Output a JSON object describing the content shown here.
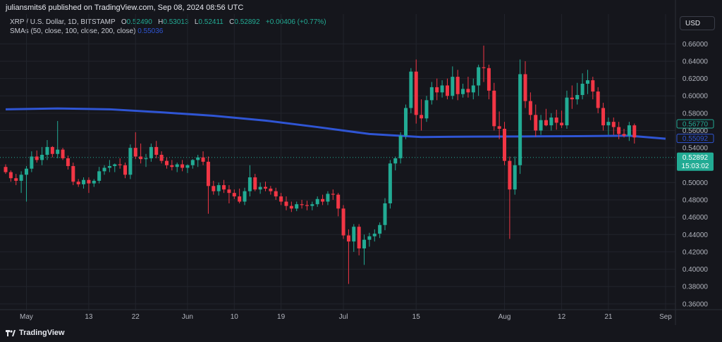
{
  "header": {
    "published": "juliansmits6 published on TradingView.com, Sep 08, 2024 08:56 UTC",
    "symbol": "XRP / U.S. Dollar, 1D, BITSTAMP",
    "open_label": "O",
    "open": "0.52490",
    "high_label": "H",
    "high": "0.53013",
    "low_label": "L",
    "low": "0.52411",
    "close_label": "C",
    "close": "0.52892",
    "change": "+0.00406 (+0.77%)",
    "sma_label": "SMAs (50, close, 100, close, 200, close)",
    "sma_value": "0.55036",
    "currency": "USD"
  },
  "footer": {
    "brand": "TradingView"
  },
  "colors": {
    "up": "#22ab94",
    "down": "#f23645",
    "sma": "#2f55d4",
    "background": "#15161c",
    "grid": "#22242c"
  },
  "chart_data": {
    "type": "candlestick",
    "y_ticks": [
      "0.36000",
      "0.38000",
      "0.40000",
      "0.42000",
      "0.44000",
      "0.46000",
      "0.48000",
      "0.50000",
      "0.52000",
      "0.54000",
      "0.56000",
      "0.58000",
      "0.60000",
      "0.62000",
      "0.64000",
      "0.66000"
    ],
    "ylim": [
      0.355,
      0.67
    ],
    "x_tick_labels": [
      {
        "label": "May",
        "i": 4
      },
      {
        "label": "13",
        "i": 16
      },
      {
        "label": "22",
        "i": 25
      },
      {
        "label": "Jun",
        "i": 35
      },
      {
        "label": "10",
        "i": 44
      },
      {
        "label": "19",
        "i": 53
      },
      {
        "label": "Jul",
        "i": 65
      },
      {
        "label": "15",
        "i": 79
      },
      {
        "label": "Aug",
        "i": 96
      },
      {
        "label": "12",
        "i": 107
      },
      {
        "label": "21",
        "i": 116
      },
      {
        "label": "Sep",
        "i": 127
      }
    ],
    "price_labels": [
      {
        "value": 0.5677,
        "text": "0.56770",
        "style": "outline-green"
      },
      {
        "value": 0.55092,
        "text": "0.55092",
        "style": "outline-blue"
      },
      {
        "value": 0.52892,
        "text": "0.52892",
        "style": "filled-green",
        "sub": "15:03:02"
      }
    ],
    "last_price": 0.52892,
    "candles": [
      [
        0.518,
        0.521,
        0.51,
        0.512
      ],
      [
        0.512,
        0.514,
        0.501,
        0.505
      ],
      [
        0.505,
        0.51,
        0.497,
        0.502
      ],
      [
        0.502,
        0.513,
        0.488,
        0.509
      ],
      [
        0.509,
        0.519,
        0.478,
        0.516
      ],
      [
        0.516,
        0.536,
        0.512,
        0.53
      ],
      [
        0.53,
        0.537,
        0.523,
        0.526
      ],
      [
        0.526,
        0.541,
        0.52,
        0.532
      ],
      [
        0.532,
        0.549,
        0.526,
        0.541
      ],
      [
        0.541,
        0.542,
        0.529,
        0.533
      ],
      [
        0.533,
        0.571,
        0.528,
        0.538
      ],
      [
        0.538,
        0.54,
        0.526,
        0.528
      ],
      [
        0.528,
        0.531,
        0.515,
        0.519
      ],
      [
        0.519,
        0.523,
        0.497,
        0.501
      ],
      [
        0.501,
        0.504,
        0.495,
        0.498
      ],
      [
        0.498,
        0.506,
        0.493,
        0.503
      ],
      [
        0.503,
        0.506,
        0.488,
        0.499
      ],
      [
        0.499,
        0.504,
        0.495,
        0.502
      ],
      [
        0.502,
        0.518,
        0.499,
        0.513
      ],
      [
        0.513,
        0.52,
        0.509,
        0.517
      ],
      [
        0.517,
        0.526,
        0.512,
        0.519
      ],
      [
        0.519,
        0.522,
        0.512,
        0.521
      ],
      [
        0.521,
        0.528,
        0.516,
        0.52
      ],
      [
        0.52,
        0.523,
        0.505,
        0.509
      ],
      [
        0.509,
        0.544,
        0.504,
        0.54
      ],
      [
        0.54,
        0.558,
        0.527,
        0.53
      ],
      [
        0.53,
        0.545,
        0.522,
        0.527
      ],
      [
        0.527,
        0.533,
        0.518,
        0.528
      ],
      [
        0.528,
        0.545,
        0.524,
        0.541
      ],
      [
        0.541,
        0.548,
        0.528,
        0.532
      ],
      [
        0.532,
        0.536,
        0.522,
        0.525
      ],
      [
        0.525,
        0.529,
        0.516,
        0.52
      ],
      [
        0.52,
        0.526,
        0.514,
        0.518
      ],
      [
        0.518,
        0.523,
        0.512,
        0.521
      ],
      [
        0.521,
        0.526,
        0.513,
        0.517
      ],
      [
        0.517,
        0.521,
        0.511,
        0.52
      ],
      [
        0.52,
        0.527,
        0.516,
        0.526
      ],
      [
        0.526,
        0.532,
        0.518,
        0.529
      ],
      [
        0.529,
        0.536,
        0.52,
        0.524
      ],
      [
        0.524,
        0.53,
        0.464,
        0.496
      ],
      [
        0.496,
        0.502,
        0.486,
        0.49
      ],
      [
        0.49,
        0.5,
        0.485,
        0.497
      ],
      [
        0.497,
        0.503,
        0.488,
        0.492
      ],
      [
        0.492,
        0.497,
        0.476,
        0.488
      ],
      [
        0.488,
        0.492,
        0.481,
        0.484
      ],
      [
        0.484,
        0.493,
        0.476,
        0.478
      ],
      [
        0.478,
        0.494,
        0.474,
        0.49
      ],
      [
        0.49,
        0.52,
        0.484,
        0.506
      ],
      [
        0.506,
        0.51,
        0.49,
        0.492
      ],
      [
        0.492,
        0.5,
        0.487,
        0.495
      ],
      [
        0.495,
        0.501,
        0.49,
        0.493
      ],
      [
        0.493,
        0.496,
        0.486,
        0.49
      ],
      [
        0.49,
        0.494,
        0.48,
        0.484
      ],
      [
        0.484,
        0.488,
        0.474,
        0.478
      ],
      [
        0.478,
        0.484,
        0.468,
        0.473
      ],
      [
        0.473,
        0.478,
        0.466,
        0.47
      ],
      [
        0.47,
        0.478,
        0.467,
        0.475
      ],
      [
        0.475,
        0.48,
        0.47,
        0.474
      ],
      [
        0.474,
        0.479,
        0.468,
        0.473
      ],
      [
        0.473,
        0.478,
        0.468,
        0.475
      ],
      [
        0.475,
        0.484,
        0.472,
        0.481
      ],
      [
        0.481,
        0.486,
        0.474,
        0.478
      ],
      [
        0.478,
        0.49,
        0.474,
        0.487
      ],
      [
        0.487,
        0.492,
        0.48,
        0.486
      ],
      [
        0.486,
        0.488,
        0.461,
        0.47
      ],
      [
        0.47,
        0.474,
        0.435,
        0.439
      ],
      [
        0.439,
        0.446,
        0.383,
        0.432
      ],
      [
        0.432,
        0.452,
        0.42,
        0.449
      ],
      [
        0.449,
        0.452,
        0.416,
        0.424
      ],
      [
        0.424,
        0.44,
        0.405,
        0.434
      ],
      [
        0.434,
        0.442,
        0.426,
        0.438
      ],
      [
        0.438,
        0.446,
        0.432,
        0.441
      ],
      [
        0.441,
        0.454,
        0.436,
        0.451
      ],
      [
        0.451,
        0.482,
        0.445,
        0.476
      ],
      [
        0.476,
        0.526,
        0.47,
        0.522
      ],
      [
        0.522,
        0.53,
        0.514,
        0.528
      ],
      [
        0.528,
        0.558,
        0.522,
        0.554
      ],
      [
        0.554,
        0.59,
        0.55,
        0.586
      ],
      [
        0.586,
        0.632,
        0.58,
        0.628
      ],
      [
        0.628,
        0.642,
        0.568,
        0.578
      ],
      [
        0.578,
        0.596,
        0.56,
        0.574
      ],
      [
        0.574,
        0.6,
        0.57,
        0.595
      ],
      [
        0.595,
        0.616,
        0.59,
        0.61
      ],
      [
        0.61,
        0.62,
        0.595,
        0.604
      ],
      [
        0.604,
        0.618,
        0.598,
        0.612
      ],
      [
        0.612,
        0.62,
        0.596,
        0.6
      ],
      [
        0.6,
        0.634,
        0.596,
        0.622
      ],
      [
        0.622,
        0.63,
        0.595,
        0.602
      ],
      [
        0.602,
        0.614,
        0.598,
        0.608
      ],
      [
        0.608,
        0.622,
        0.598,
        0.604
      ],
      [
        0.604,
        0.62,
        0.596,
        0.612
      ],
      [
        0.612,
        0.636,
        0.6,
        0.633
      ],
      [
        0.633,
        0.658,
        0.616,
        0.632
      ],
      [
        0.632,
        0.636,
        0.596,
        0.606
      ],
      [
        0.606,
        0.615,
        0.56,
        0.565
      ],
      [
        0.565,
        0.582,
        0.55,
        0.562
      ],
      [
        0.562,
        0.57,
        0.52,
        0.525
      ],
      [
        0.525,
        0.53,
        0.435,
        0.492
      ],
      [
        0.492,
        0.53,
        0.486,
        0.52
      ],
      [
        0.52,
        0.642,
        0.51,
        0.625
      ],
      [
        0.625,
        0.64,
        0.586,
        0.594
      ],
      [
        0.594,
        0.604,
        0.572,
        0.578
      ],
      [
        0.578,
        0.59,
        0.553,
        0.56
      ],
      [
        0.56,
        0.578,
        0.555,
        0.572
      ],
      [
        0.572,
        0.585,
        0.565,
        0.566
      ],
      [
        0.566,
        0.58,
        0.56,
        0.575
      ],
      [
        0.575,
        0.584,
        0.561,
        0.569
      ],
      [
        0.569,
        0.583,
        0.563,
        0.566
      ],
      [
        0.566,
        0.606,
        0.562,
        0.598
      ],
      [
        0.598,
        0.612,
        0.585,
        0.596
      ],
      [
        0.596,
        0.615,
        0.59,
        0.601
      ],
      [
        0.601,
        0.626,
        0.596,
        0.614
      ],
      [
        0.614,
        0.63,
        0.602,
        0.618
      ],
      [
        0.618,
        0.622,
        0.596,
        0.605
      ],
      [
        0.605,
        0.61,
        0.58,
        0.586
      ],
      [
        0.586,
        0.592,
        0.56,
        0.566
      ],
      [
        0.566,
        0.575,
        0.555,
        0.57
      ],
      [
        0.57,
        0.575,
        0.555,
        0.564
      ],
      [
        0.564,
        0.57,
        0.55,
        0.556
      ],
      [
        0.556,
        0.562,
        0.552,
        0.554
      ],
      [
        0.554,
        0.57,
        0.548,
        0.566
      ],
      [
        0.566,
        0.568,
        0.545,
        0.552
      ]
    ],
    "sma_line": [
      [
        0,
        0.5845
      ],
      [
        10,
        0.5855
      ],
      [
        20,
        0.5845
      ],
      [
        30,
        0.581
      ],
      [
        40,
        0.577
      ],
      [
        50,
        0.5715
      ],
      [
        60,
        0.564
      ],
      [
        70,
        0.556
      ],
      [
        80,
        0.5525
      ],
      [
        90,
        0.553
      ],
      [
        100,
        0.5532
      ],
      [
        110,
        0.5535
      ],
      [
        120,
        0.554
      ],
      [
        127,
        0.5506
      ]
    ]
  }
}
